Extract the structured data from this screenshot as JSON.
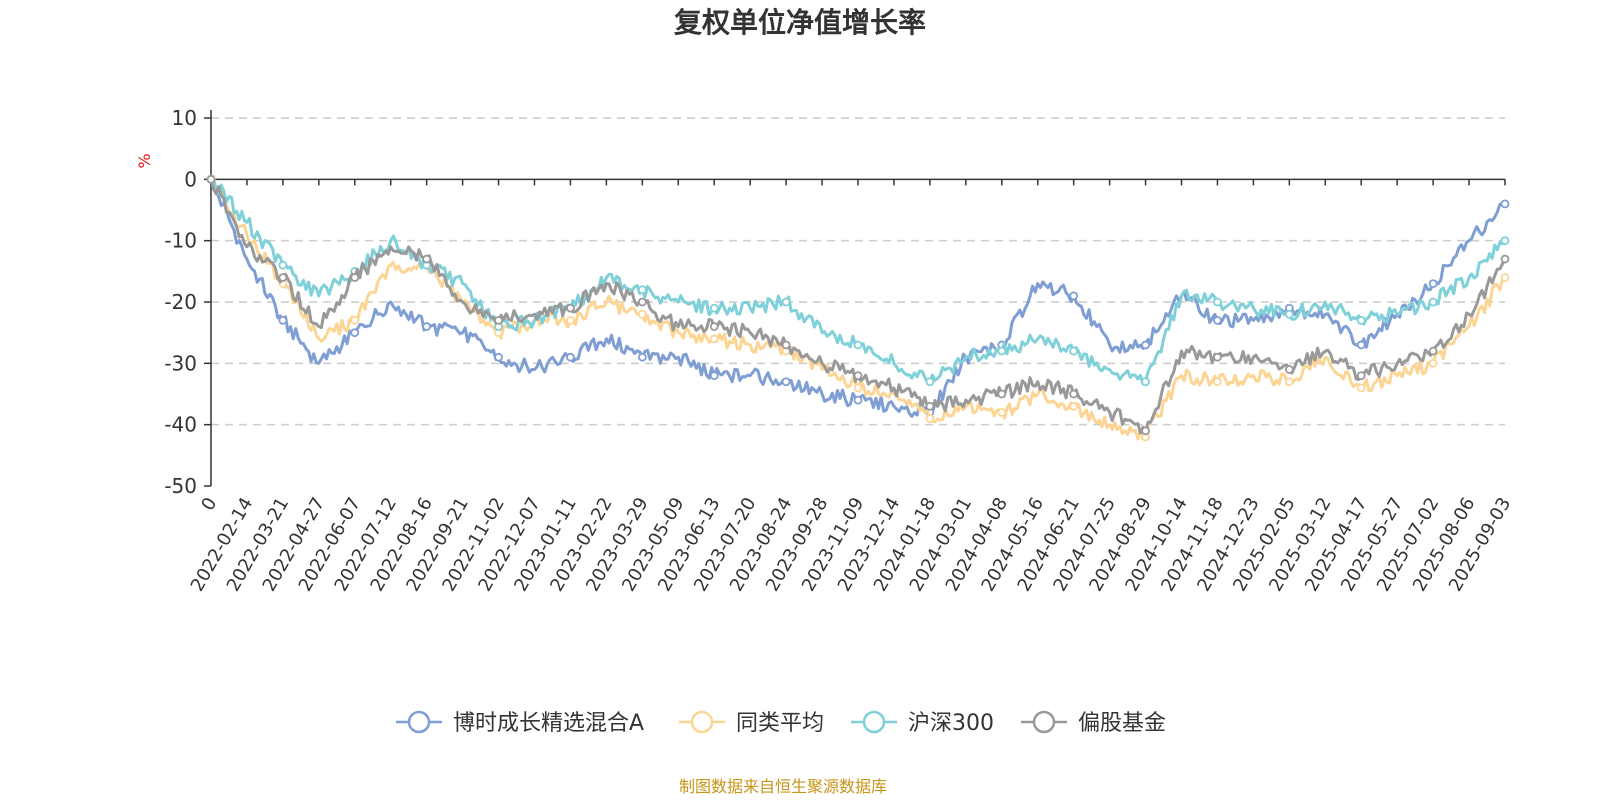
{
  "chart_data": {
    "type": "line",
    "title": "复权单位净值增长率",
    "y_unit": "%",
    "ylim": [
      -50,
      10
    ],
    "y_ticks": [
      10,
      0,
      -10,
      -20,
      -30,
      -40,
      -50
    ],
    "grid": true,
    "legend_position": "bottom",
    "x_ticks": [
      "0",
      "2022-02-14",
      "2022-03-21",
      "2022-04-27",
      "2022-06-07",
      "2022-07-12",
      "2022-08-16",
      "2022-09-21",
      "2022-11-02",
      "2022-12-07",
      "2023-01-11",
      "2023-02-22",
      "2023-03-29",
      "2023-05-09",
      "2023-06-13",
      "2023-07-20",
      "2023-08-24",
      "2023-09-28",
      "2023-11-09",
      "2023-12-14",
      "2024-01-18",
      "2024-03-01",
      "2024-04-08",
      "2024-05-16",
      "2024-06-21",
      "2024-07-25",
      "2024-08-29",
      "2024-10-14",
      "2024-11-18",
      "2024-12-23",
      "2025-02-05",
      "2025-03-12",
      "2025-04-17",
      "2025-05-27",
      "2025-07-02",
      "2025-08-06",
      "2025-09-03"
    ],
    "x": [
      "2022-01-10",
      "2022-02-14",
      "2022-03-21",
      "2022-04-27",
      "2022-06-07",
      "2022-07-12",
      "2022-08-16",
      "2022-09-21",
      "2022-11-02",
      "2022-12-07",
      "2023-01-11",
      "2023-02-22",
      "2023-03-29",
      "2023-05-09",
      "2023-06-13",
      "2023-07-20",
      "2023-08-24",
      "2023-09-28",
      "2023-11-09",
      "2023-12-14",
      "2024-01-18",
      "2024-03-01",
      "2024-04-08",
      "2024-05-16",
      "2024-06-21",
      "2024-07-25",
      "2024-08-29",
      "2024-10-14",
      "2024-11-18",
      "2024-12-23",
      "2025-02-05",
      "2025-03-12",
      "2025-04-17",
      "2025-05-27",
      "2025-07-02",
      "2025-08-06",
      "2025-09-03"
    ],
    "series": [
      {
        "name": "博时成长精选混合A",
        "color": "#7f9ed3",
        "values": [
          0,
          -13,
          -23,
          -30,
          -25,
          -20,
          -24,
          -25,
          -29,
          -31,
          -29,
          -26,
          -29,
          -29,
          -32,
          -32,
          -33,
          -35,
          -36,
          -37,
          -38,
          -29,
          -27,
          -17,
          -19,
          -27,
          -27,
          -19,
          -23,
          -23,
          -21,
          -22,
          -27,
          -22,
          -17,
          -10,
          -4
        ]
      },
      {
        "name": "同类平均",
        "color": "#fcd594",
        "values": [
          0,
          -9,
          -17,
          -26,
          -23,
          -14,
          -14,
          -20,
          -25,
          -23,
          -23,
          -20,
          -22,
          -25,
          -26,
          -27,
          -28,
          -31,
          -34,
          -35,
          -39,
          -37,
          -38,
          -35,
          -37,
          -40,
          -42,
          -32,
          -33,
          -32,
          -33,
          -29,
          -34,
          -32,
          -30,
          -24,
          -16
        ]
      },
      {
        "name": "沪深300",
        "color": "#7fd0d8",
        "values": [
          0,
          -7,
          -14,
          -19,
          -15,
          -10,
          -14,
          -17,
          -24,
          -23,
          -21,
          -16,
          -18,
          -20,
          -21,
          -21,
          -20,
          -25,
          -27,
          -30,
          -33,
          -29,
          -28,
          -26,
          -28,
          -31,
          -33,
          -19,
          -20,
          -21,
          -22,
          -20,
          -23,
          -22,
          -20,
          -16,
          -10
        ]
      },
      {
        "name": "偏股基金",
        "color": "#999999",
        "values": [
          0,
          -11,
          -16,
          -24,
          -16,
          -11,
          -13,
          -20,
          -23,
          -22,
          -21,
          -17,
          -20,
          -24,
          -24,
          -25,
          -27,
          -30,
          -32,
          -34,
          -37,
          -36,
          -35,
          -33,
          -35,
          -38,
          -41,
          -28,
          -29,
          -29,
          -31,
          -28,
          -32,
          -30,
          -28,
          -22,
          -13
        ]
      }
    ]
  },
  "source_text": "制图数据来自恒生聚源数据库"
}
